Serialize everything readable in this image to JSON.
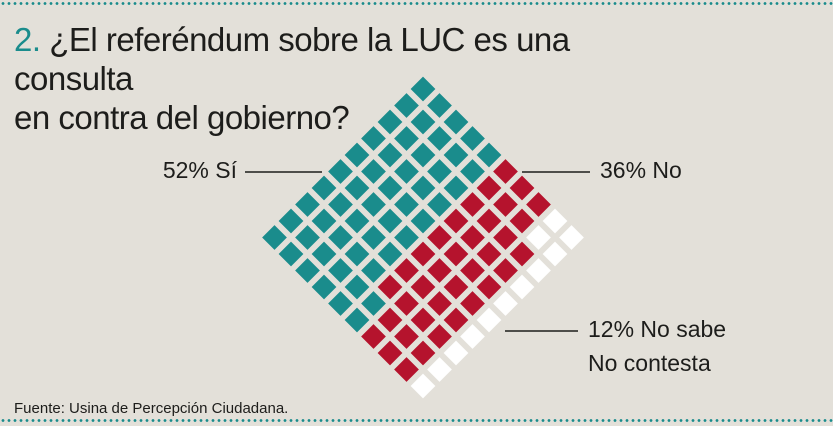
{
  "header": {
    "number": "2.",
    "title_line1": "¿El referéndum sobre la LUC es una consulta",
    "title_line2": "en contra del gobierno?"
  },
  "chart_data": {
    "type": "waffle",
    "title": "¿El referéndum sobre la LUC es una consulta en contra del gobierno?",
    "total": 100,
    "series": [
      {
        "name": "Sí",
        "label": "52% Sí",
        "value": 52,
        "color": "#1a8c8c"
      },
      {
        "name": "No",
        "label": "36% No",
        "value": 36,
        "color": "#b5132d"
      },
      {
        "name": "No sabe / No contesta",
        "label": "12% No sabe",
        "label2": "No contesta",
        "value": 12,
        "color": "#ffffff"
      }
    ]
  },
  "footer": {
    "source": "Fuente: Usina de Percepción Ciudadana."
  }
}
